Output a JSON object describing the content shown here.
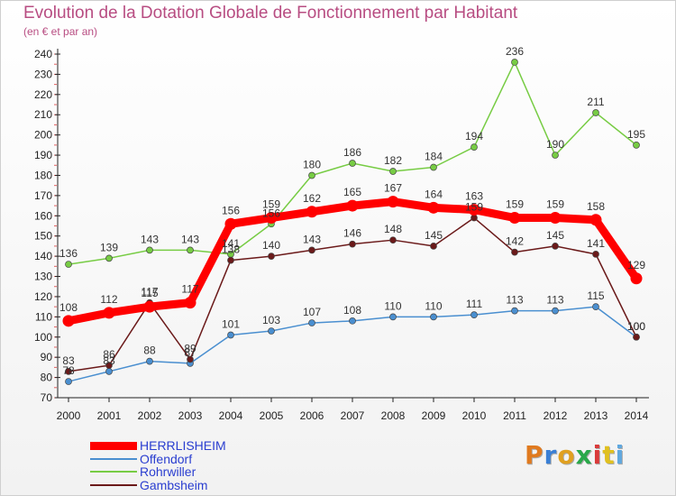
{
  "title": "Evolution de la Dotation Globale de Fonctionnement par Habitant",
  "subtitle": "(en € et par an)",
  "logo": {
    "text": "Proxiti",
    "letter_colors": [
      "#e07a1f",
      "#3a7fd5",
      "#e0a020",
      "#2aa84a",
      "#d93a3a",
      "#e0c020",
      "#5fa8e0"
    ]
  },
  "chart_data": {
    "type": "line",
    "title": "Evolution de la Dotation Globale de Fonctionnement par Habitant",
    "subtitle": "(en € et par an)",
    "x": [
      "2000",
      "2001",
      "2002",
      "2003",
      "2004",
      "2005",
      "2006",
      "2007",
      "2008",
      "2009",
      "2010",
      "2011",
      "2012",
      "2013",
      "2014"
    ],
    "ylim": [
      70,
      240
    ],
    "yticks": [
      70,
      80,
      90,
      100,
      110,
      120,
      130,
      140,
      150,
      160,
      170,
      180,
      190,
      200,
      210,
      220,
      230,
      240
    ],
    "grid": false,
    "legend_position": "bottom-left",
    "series": [
      {
        "name": "HERRLISHEIM",
        "color": "#ff0000",
        "emphasis": true,
        "values": [
          108,
          112,
          115,
          117,
          156,
          159,
          162,
          165,
          167,
          164,
          163,
          159,
          159,
          158,
          129
        ],
        "labels": [
          "108",
          "112",
          "115",
          "117",
          "156",
          "159",
          "162",
          "165",
          "167",
          "164",
          "163",
          "159",
          "159",
          "158",
          "129"
        ]
      },
      {
        "name": "Offendorf",
        "color": "#4a8fd0",
        "values": [
          78,
          83,
          88,
          87,
          101,
          103,
          107,
          108,
          110,
          110,
          111,
          113,
          113,
          115,
          100
        ],
        "labels": [
          "78",
          "83",
          "88",
          "87",
          "101",
          "103",
          "107",
          "108",
          "110",
          "110",
          "111",
          "113",
          "113",
          "115",
          "100"
        ]
      },
      {
        "name": "Rohrwiller",
        "color": "#77cc44",
        "values": [
          136,
          139,
          143,
          143,
          141,
          156,
          180,
          186,
          182,
          184,
          194,
          236,
          190,
          211,
          195
        ],
        "labels": [
          "136",
          "139",
          "143",
          "143",
          "141",
          "156",
          "180",
          "186",
          "182",
          "184",
          "194",
          "236",
          "190",
          "211",
          "195"
        ]
      },
      {
        "name": "Gambsheim",
        "color": "#6b1a1a",
        "values": [
          83,
          86,
          117,
          89,
          138,
          140,
          143,
          146,
          148,
          145,
          159,
          142,
          145,
          141,
          100
        ],
        "labels": [
          "83",
          "86",
          "117",
          "89",
          "138",
          "140",
          "143",
          "146",
          "148",
          "145",
          "159",
          "142",
          "145",
          "141",
          "100"
        ]
      }
    ]
  }
}
